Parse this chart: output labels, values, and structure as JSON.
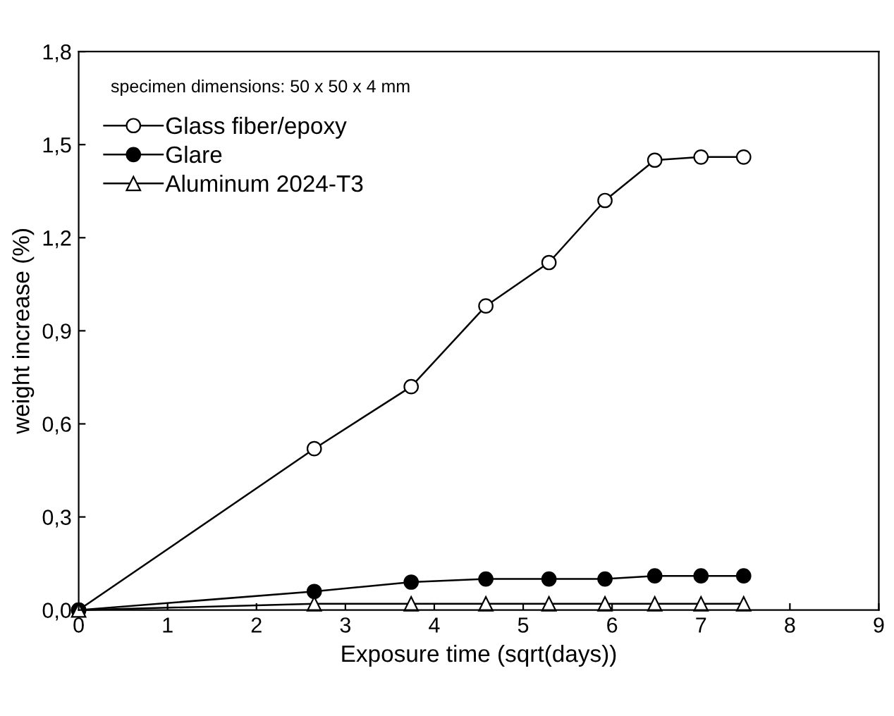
{
  "chart_data": {
    "type": "line",
    "xlabel": "Exposure time (sqrt(days))",
    "ylabel": "weight increase (%)",
    "annotations": [
      "specimen dimensions: 50 x 50 x 4 mm"
    ],
    "x": [
      0,
      2.65,
      3.74,
      4.58,
      5.29,
      5.92,
      6.48,
      7.0,
      7.48
    ],
    "series": [
      {
        "name": "Glass fiber/epoxy",
        "color": "#000000",
        "marker": "circle",
        "values": [
          0,
          0.52,
          0.72,
          0.98,
          1.12,
          1.32,
          1.45,
          1.46,
          1.46
        ]
      },
      {
        "name": "Glare",
        "color": "#000000",
        "marker": "circle",
        "values": [
          0,
          0.06,
          0.09,
          0.1,
          0.1,
          0.1,
          0.11,
          0.11,
          0.11
        ]
      },
      {
        "name": "Aluminum 2024-T3",
        "color": "#000000",
        "marker": "triangle",
        "values": [
          0,
          0.02,
          0.02,
          0.02,
          0.02,
          0.02,
          0.02,
          0.02,
          0.02
        ]
      }
    ],
    "xlim": [
      0,
      9
    ],
    "ylim": [
      0,
      1.8
    ],
    "xticks": [
      0,
      1,
      2,
      3,
      4,
      5,
      6,
      7,
      8,
      9
    ],
    "yticks": [
      {
        "value": 0,
        "label": "0,0"
      },
      {
        "value": 0.3,
        "label": "0,3"
      },
      {
        "value": 0.6,
        "label": "0,6"
      },
      {
        "value": 0.9,
        "label": "0,9"
      },
      {
        "value": 1.2,
        "label": "1,2"
      },
      {
        "value": 1.5,
        "label": "1,5"
      },
      {
        "value": 1.8,
        "label": "1,8"
      }
    ],
    "grid": false,
    "legend": "top left",
    "line_style": "solid"
  }
}
